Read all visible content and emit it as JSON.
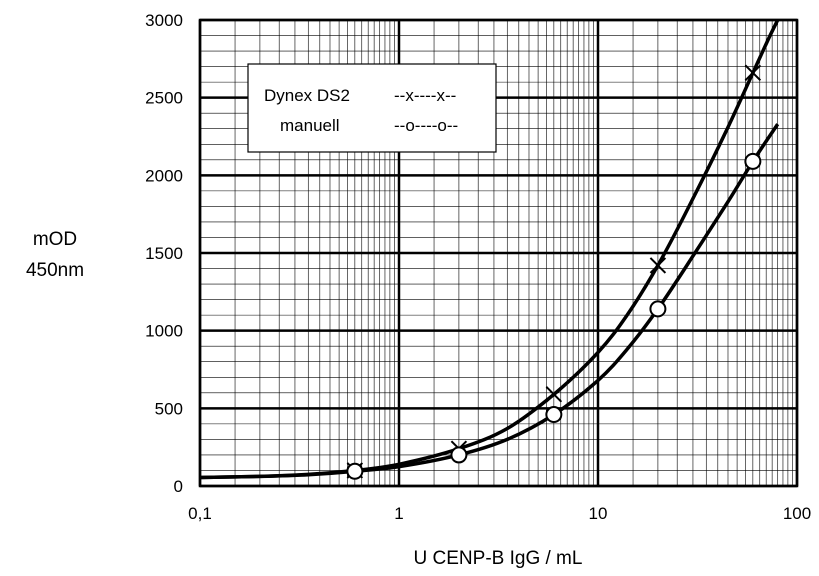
{
  "chart_data": {
    "type": "line",
    "xscale": "log",
    "xlim": [
      0.1,
      100
    ],
    "ylim": [
      0,
      3000
    ],
    "xlabel": "U  CENP-B  IgG / mL",
    "ylabel": [
      "mOD",
      "450nm"
    ],
    "x_ticks": [
      0.1,
      1,
      10,
      100
    ],
    "x_tick_labels": [
      "0,1",
      "1",
      "10",
      "100"
    ],
    "y_ticks": [
      0,
      500,
      1000,
      1500,
      2000,
      2500,
      3000
    ],
    "y_tick_labels": [
      "0",
      "500",
      "1000",
      "1500",
      "2000",
      "2500",
      "3000"
    ],
    "grid": true,
    "legend": {
      "position": "top-left",
      "entries": [
        {
          "name": "Dynex DS2",
          "marker_text": "--x----x--"
        },
        {
          "name": "manuell",
          "marker_text": "--o----o--"
        }
      ]
    },
    "series": [
      {
        "name": "Dynex DS2",
        "marker": "x",
        "points": [
          {
            "x": 0.6,
            "y": 100
          },
          {
            "x": 2,
            "y": 240
          },
          {
            "x": 6,
            "y": 590
          },
          {
            "x": 20,
            "y": 1420
          },
          {
            "x": 60,
            "y": 2660
          }
        ],
        "curve": [
          {
            "x": 0.1,
            "y": 55
          },
          {
            "x": 0.2,
            "y": 62
          },
          {
            "x": 0.35,
            "y": 75
          },
          {
            "x": 0.6,
            "y": 100
          },
          {
            "x": 1,
            "y": 140
          },
          {
            "x": 2,
            "y": 240
          },
          {
            "x": 3.5,
            "y": 370
          },
          {
            "x": 6,
            "y": 590
          },
          {
            "x": 10,
            "y": 860
          },
          {
            "x": 14,
            "y": 1100
          },
          {
            "x": 20,
            "y": 1420
          },
          {
            "x": 30,
            "y": 1850
          },
          {
            "x": 45,
            "y": 2310
          },
          {
            "x": 60,
            "y": 2660
          },
          {
            "x": 72,
            "y": 2880
          },
          {
            "x": 80,
            "y": 3000
          }
        ]
      },
      {
        "name": "manuell",
        "marker": "o",
        "points": [
          {
            "x": 0.6,
            "y": 95
          },
          {
            "x": 2,
            "y": 200
          },
          {
            "x": 6,
            "y": 460
          },
          {
            "x": 20,
            "y": 1140
          },
          {
            "x": 60,
            "y": 2090
          }
        ],
        "curve": [
          {
            "x": 0.1,
            "y": 55
          },
          {
            "x": 0.2,
            "y": 62
          },
          {
            "x": 0.35,
            "y": 73
          },
          {
            "x": 0.6,
            "y": 95
          },
          {
            "x": 1,
            "y": 125
          },
          {
            "x": 2,
            "y": 200
          },
          {
            "x": 3.5,
            "y": 300
          },
          {
            "x": 6,
            "y": 460
          },
          {
            "x": 10,
            "y": 680
          },
          {
            "x": 14,
            "y": 880
          },
          {
            "x": 20,
            "y": 1140
          },
          {
            "x": 30,
            "y": 1480
          },
          {
            "x": 45,
            "y": 1830
          },
          {
            "x": 60,
            "y": 2090
          },
          {
            "x": 80,
            "y": 2330
          }
        ]
      }
    ]
  }
}
